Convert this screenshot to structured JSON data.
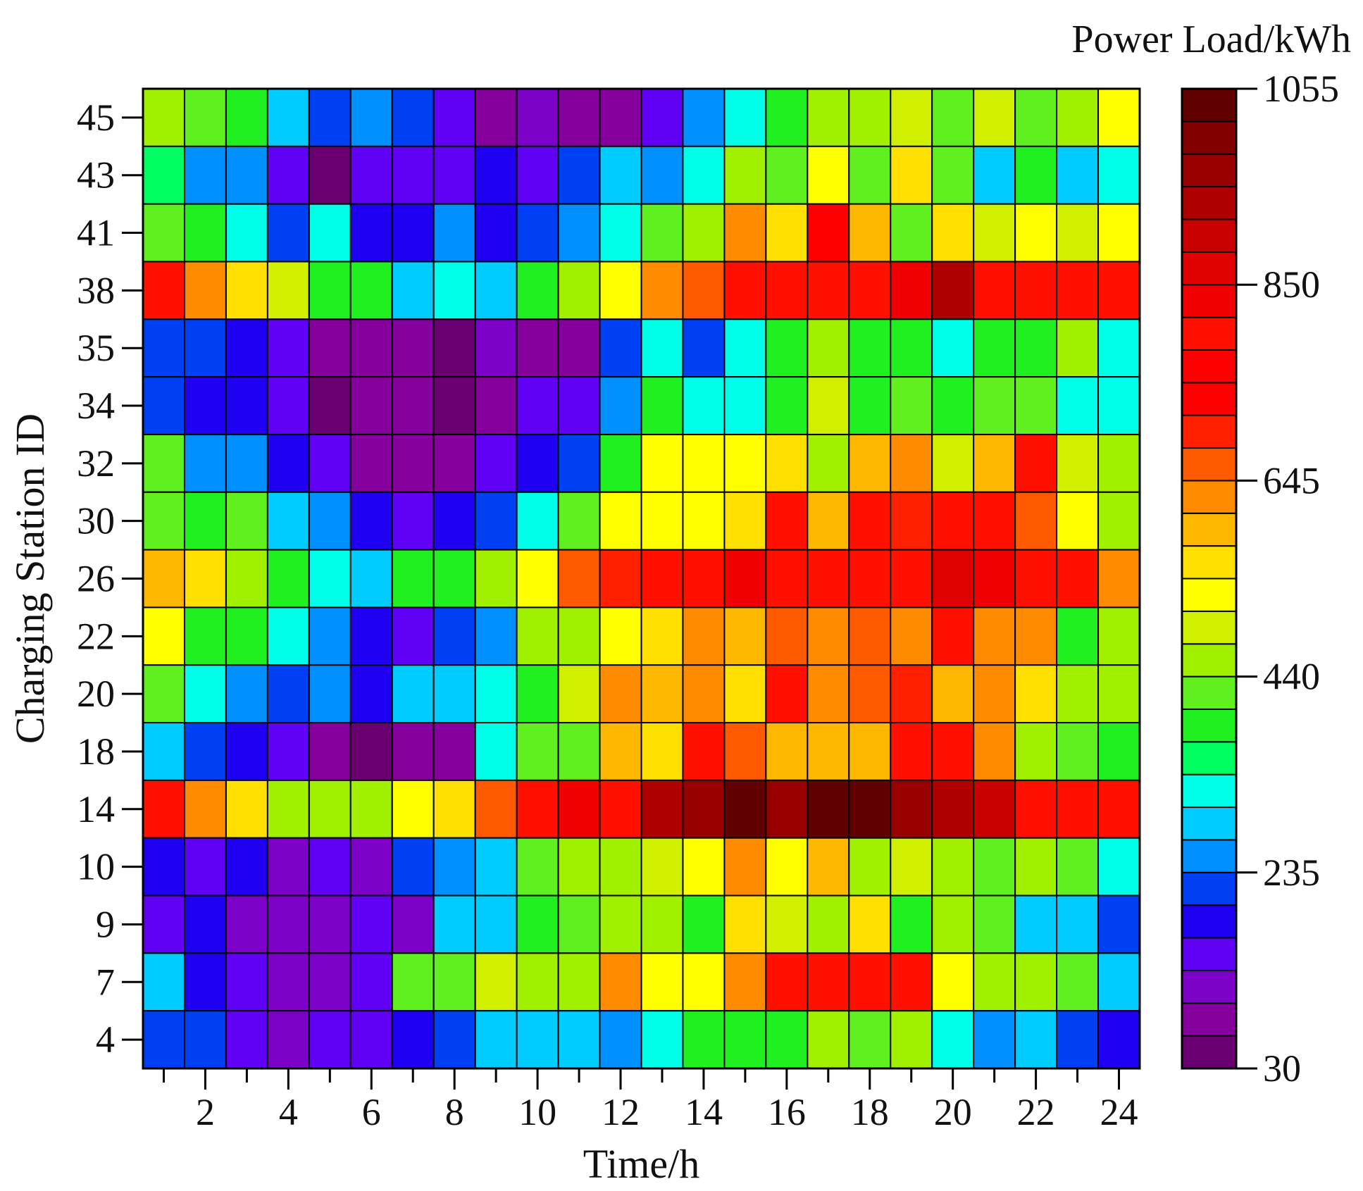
{
  "chart_data": {
    "type": "heatmap",
    "title": "",
    "xlabel": "Time/h",
    "ylabel": "Charging Station ID",
    "colorbar_label": "Power Load/kWh",
    "colorbar_range": [
      30,
      1055
    ],
    "colorbar_ticks": [
      30,
      235,
      440,
      645,
      850,
      1055
    ],
    "x": [
      1,
      2,
      3,
      4,
      5,
      6,
      7,
      8,
      9,
      10,
      11,
      12,
      13,
      14,
      15,
      16,
      17,
      18,
      19,
      20,
      21,
      22,
      23,
      24
    ],
    "x_tick_labels": [
      2,
      4,
      6,
      8,
      10,
      12,
      14,
      16,
      18,
      20,
      22,
      24
    ],
    "rows_top_to_bottom": [
      "45",
      "43",
      "41",
      "38",
      "35",
      "34",
      "32",
      "30",
      "26",
      "22",
      "20",
      "18",
      "14",
      "10",
      "9",
      "7",
      "4"
    ],
    "values": [
      [
        460,
        420,
        380,
        300,
        230,
        250,
        220,
        150,
        90,
        120,
        90,
        90,
        140,
        250,
        330,
        400,
        440,
        460,
        500,
        430,
        480,
        420,
        450,
        530
      ],
      [
        370,
        250,
        250,
        140,
        60,
        140,
        150,
        150,
        200,
        150,
        220,
        300,
        260,
        320,
        460,
        410,
        540,
        430,
        570,
        420,
        300,
        380,
        290,
        320
      ],
      [
        430,
        400,
        320,
        220,
        320,
        200,
        190,
        250,
        190,
        230,
        250,
        320,
        430,
        440,
        620,
        570,
        780,
        610,
        430,
        550,
        490,
        530,
        480,
        540
      ],
      [
        810,
        640,
        560,
        480,
        390,
        390,
        290,
        320,
        300,
        400,
        440,
        530,
        630,
        650,
        800,
        800,
        800,
        810,
        820,
        920,
        810,
        810,
        800,
        810
      ],
      [
        230,
        220,
        180,
        150,
        90,
        90,
        80,
        60,
        130,
        90,
        90,
        220,
        320,
        230,
        330,
        390,
        460,
        380,
        380,
        320,
        400,
        400,
        450,
        320
      ],
      [
        230,
        180,
        180,
        150,
        60,
        90,
        80,
        60,
        90,
        150,
        150,
        240,
        380,
        330,
        330,
        380,
        490,
        400,
        430,
        400,
        430,
        430,
        320,
        320
      ],
      [
        410,
        250,
        250,
        180,
        150,
        90,
        80,
        80,
        150,
        180,
        220,
        400,
        540,
        540,
        540,
        570,
        440,
        610,
        620,
        500,
        580,
        810,
        490,
        470
      ],
      [
        410,
        390,
        430,
        290,
        250,
        190,
        150,
        190,
        220,
        320,
        430,
        540,
        540,
        540,
        560,
        800,
        610,
        800,
        680,
        800,
        800,
        670,
        540,
        460
      ],
      [
        600,
        560,
        460,
        400,
        320,
        280,
        390,
        380,
        460,
        540,
        660,
        680,
        800,
        800,
        830,
        800,
        800,
        800,
        800,
        860,
        830,
        810,
        800,
        640
      ],
      [
        540,
        400,
        380,
        320,
        250,
        190,
        150,
        220,
        250,
        440,
        470,
        540,
        570,
        620,
        610,
        670,
        630,
        660,
        640,
        800,
        620,
        620,
        390,
        460
      ],
      [
        410,
        320,
        250,
        220,
        250,
        190,
        290,
        300,
        320,
        390,
        500,
        640,
        610,
        630,
        570,
        800,
        640,
        660,
        680,
        610,
        640,
        560,
        470,
        450
      ],
      [
        290,
        220,
        180,
        150,
        90,
        60,
        90,
        90,
        320,
        420,
        430,
        600,
        570,
        790,
        670,
        580,
        610,
        600,
        800,
        800,
        620,
        470,
        430,
        390
      ],
      [
        800,
        640,
        550,
        470,
        470,
        470,
        510,
        560,
        670,
        800,
        820,
        800,
        950,
        960,
        1055,
        960,
        1055,
        1055,
        980,
        920,
        900,
        800,
        800,
        800
      ],
      [
        180,
        150,
        180,
        120,
        140,
        100,
        220,
        250,
        290,
        420,
        460,
        470,
        480,
        540,
        640,
        510,
        580,
        470,
        480,
        440,
        410,
        440,
        430,
        320
      ],
      [
        140,
        180,
        100,
        120,
        100,
        150,
        130,
        300,
        300,
        390,
        420,
        460,
        440,
        400,
        550,
        490,
        460,
        570,
        380,
        450,
        420,
        300,
        290,
        220
      ],
      [
        290,
        180,
        150,
        100,
        130,
        150,
        420,
        420,
        490,
        460,
        450,
        640,
        540,
        540,
        640,
        800,
        800,
        800,
        800,
        540,
        460,
        450,
        430,
        290
      ],
      [
        230,
        220,
        150,
        130,
        140,
        150,
        180,
        220,
        300,
        300,
        300,
        260,
        320,
        380,
        400,
        390,
        460,
        430,
        460,
        320,
        260,
        300,
        220,
        180
      ]
    ]
  }
}
